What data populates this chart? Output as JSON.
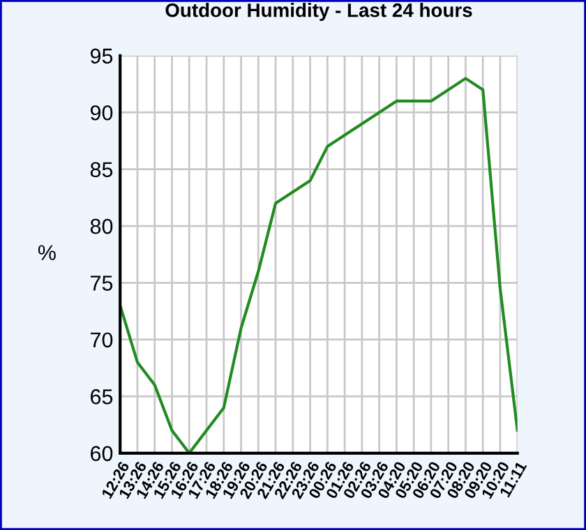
{
  "chart_data": {
    "type": "line",
    "title": "Outdoor Humidity - Last 24 hours",
    "ylabel": "%",
    "categories": [
      "12:26",
      "13:26",
      "14:26",
      "15:26",
      "16:26",
      "17:26",
      "18:26",
      "19:26",
      "20:26",
      "21:26",
      "22:26",
      "23:26",
      "00:26",
      "01:26",
      "02:26",
      "03:26",
      "04:20",
      "05:20",
      "06:20",
      "07:20",
      "08:20",
      "09:20",
      "10:20",
      "11:11"
    ],
    "series": [
      {
        "color": "#228b22",
        "values": [
          73,
          68,
          66,
          62,
          60,
          62,
          64,
          71,
          76,
          82,
          83,
          84,
          87,
          88,
          89,
          90,
          91,
          91,
          91,
          92,
          93,
          92,
          74.5,
          62
        ]
      }
    ],
    "ylim": [
      60,
      95
    ],
    "yticks": [
      60,
      65,
      70,
      75,
      80,
      85,
      90,
      95
    ],
    "grid": true,
    "marker": "none",
    "line_style": "solid",
    "legend": false
  }
}
